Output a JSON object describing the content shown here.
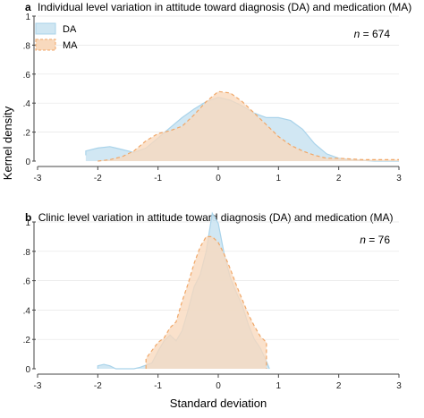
{
  "figure": {
    "ylabel": "Kernel density",
    "xlabel": "Standard deviation"
  },
  "colors": {
    "da_fill": "#cfe6f2",
    "da_stroke": "#a9d3ea",
    "ma_fill": "#f8d9bd",
    "ma_stroke": "#f0a768",
    "overlap_fill": "#e8dcc6",
    "axis": "#444444",
    "grid": "#e5e5e5"
  },
  "chart_data": [
    {
      "type": "area",
      "panel_letter": "a",
      "title": "Individual level variation in attitude toward diagnosis (DA) and medication (MA)",
      "annotation_n": "n",
      "annotation_value": " = 674",
      "xlim": [
        -3,
        3
      ],
      "ylim": [
        0,
        1
      ],
      "xticks": [
        "-3",
        "-2",
        "-1",
        "0",
        "1",
        "2",
        "3"
      ],
      "yticks": [
        "0",
        ".2",
        ".4",
        ".6",
        ".8",
        "1"
      ],
      "legend": {
        "position": "top-left",
        "entries": [
          "DA",
          "MA"
        ]
      },
      "series": [
        {
          "name": "DA",
          "points": [
            [
              -2.2,
              0.04
            ],
            [
              -2.2,
              0.07
            ],
            [
              -2.0,
              0.09
            ],
            [
              -1.8,
              0.1
            ],
            [
              -1.6,
              0.08
            ],
            [
              -1.4,
              0.06
            ],
            [
              -1.2,
              0.09
            ],
            [
              -1.0,
              0.16
            ],
            [
              -0.8,
              0.23
            ],
            [
              -0.6,
              0.3
            ],
            [
              -0.4,
              0.36
            ],
            [
              -0.2,
              0.41
            ],
            [
              0.0,
              0.44
            ],
            [
              0.2,
              0.42
            ],
            [
              0.4,
              0.38
            ],
            [
              0.6,
              0.33
            ],
            [
              0.8,
              0.3
            ],
            [
              1.0,
              0.3
            ],
            [
              1.2,
              0.28
            ],
            [
              1.4,
              0.22
            ],
            [
              1.6,
              0.12
            ],
            [
              1.8,
              0.05
            ],
            [
              2.0,
              0.02
            ],
            [
              2.2,
              0.01
            ],
            [
              2.6,
              0.0
            ],
            [
              3.0,
              0.0
            ]
          ]
        },
        {
          "name": "MA",
          "points": [
            [
              -2.0,
              0.0
            ],
            [
              -1.8,
              0.01
            ],
            [
              -1.6,
              0.03
            ],
            [
              -1.4,
              0.07
            ],
            [
              -1.2,
              0.14
            ],
            [
              -1.0,
              0.19
            ],
            [
              -0.8,
              0.21
            ],
            [
              -0.6,
              0.24
            ],
            [
              -0.4,
              0.32
            ],
            [
              -0.2,
              0.41
            ],
            [
              0.0,
              0.48
            ],
            [
              0.2,
              0.47
            ],
            [
              0.4,
              0.41
            ],
            [
              0.6,
              0.33
            ],
            [
              0.8,
              0.25
            ],
            [
              1.0,
              0.17
            ],
            [
              1.2,
              0.11
            ],
            [
              1.4,
              0.07
            ],
            [
              1.6,
              0.04
            ],
            [
              1.8,
              0.02
            ],
            [
              2.0,
              0.02
            ],
            [
              2.4,
              0.01
            ],
            [
              2.8,
              0.01
            ],
            [
              3.0,
              0.01
            ]
          ]
        }
      ]
    },
    {
      "type": "area",
      "panel_letter": "b",
      "title": "Clinic level variation in attitude toward diagnosis (DA) and medication (MA)",
      "annotation_n": "n",
      "annotation_value": " = 76",
      "xlim": [
        -3,
        3
      ],
      "ylim": [
        0,
        1
      ],
      "xticks": [
        "-3",
        "-2",
        "-1",
        "0",
        "1",
        "2",
        "3"
      ],
      "yticks": [
        "0",
        ".2",
        ".4",
        ".6",
        ".8",
        "1"
      ],
      "series": [
        {
          "name": "DA",
          "points": [
            [
              -2.0,
              0.0
            ],
            [
              -2.0,
              0.02
            ],
            [
              -1.9,
              0.03
            ],
            [
              -1.8,
              0.02
            ],
            [
              -1.7,
              0.0
            ],
            [
              -1.4,
              0.0
            ],
            [
              -1.3,
              0.01
            ],
            [
              -1.1,
              0.04
            ],
            [
              -1.0,
              0.12
            ],
            [
              -0.9,
              0.19
            ],
            [
              -0.8,
              0.23
            ],
            [
              -0.7,
              0.19
            ],
            [
              -0.6,
              0.26
            ],
            [
              -0.5,
              0.4
            ],
            [
              -0.4,
              0.56
            ],
            [
              -0.3,
              0.64
            ],
            [
              -0.2,
              0.8
            ],
            [
              -0.1,
              1.06
            ],
            [
              0.0,
              0.99
            ],
            [
              0.1,
              0.78
            ],
            [
              0.2,
              0.62
            ],
            [
              0.3,
              0.52
            ],
            [
              0.4,
              0.43
            ],
            [
              0.5,
              0.3
            ],
            [
              0.6,
              0.2
            ],
            [
              0.7,
              0.14
            ],
            [
              0.8,
              0.05
            ],
            [
              0.85,
              0.0
            ]
          ]
        },
        {
          "name": "MA",
          "points": [
            [
              -1.2,
              0.0
            ],
            [
              -1.2,
              0.07
            ],
            [
              -1.0,
              0.18
            ],
            [
              -0.9,
              0.21
            ],
            [
              -0.8,
              0.28
            ],
            [
              -0.7,
              0.32
            ],
            [
              -0.6,
              0.46
            ],
            [
              -0.5,
              0.58
            ],
            [
              -0.4,
              0.72
            ],
            [
              -0.3,
              0.83
            ],
            [
              -0.2,
              0.9
            ],
            [
              -0.1,
              0.9
            ],
            [
              0.0,
              0.86
            ],
            [
              0.1,
              0.78
            ],
            [
              0.2,
              0.68
            ],
            [
              0.3,
              0.57
            ],
            [
              0.4,
              0.47
            ],
            [
              0.5,
              0.37
            ],
            [
              0.6,
              0.29
            ],
            [
              0.7,
              0.22
            ],
            [
              0.8,
              0.18
            ],
            [
              0.8,
              0.0
            ]
          ]
        }
      ]
    }
  ]
}
